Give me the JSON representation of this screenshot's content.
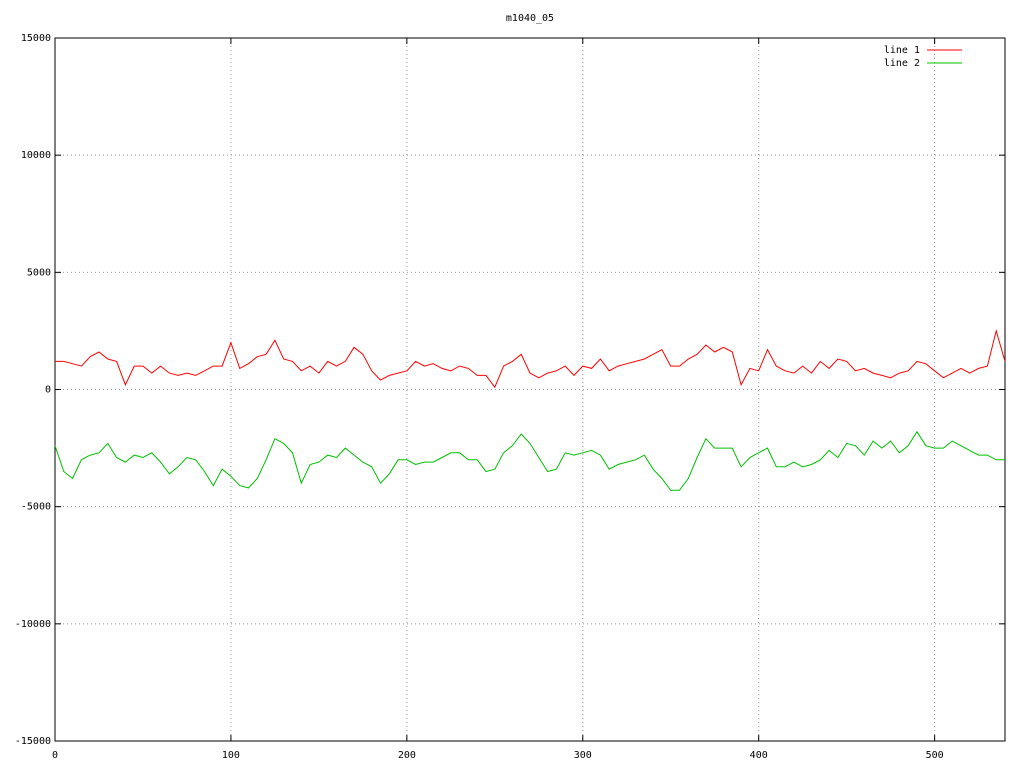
{
  "chart_data": {
    "type": "line",
    "title": "m1040_05",
    "x": [
      0,
      5,
      10,
      15,
      20,
      25,
      30,
      35,
      40,
      45,
      50,
      55,
      60,
      65,
      70,
      75,
      80,
      85,
      90,
      95,
      100,
      105,
      110,
      115,
      120,
      125,
      130,
      135,
      140,
      145,
      150,
      155,
      160,
      165,
      170,
      175,
      180,
      185,
      190,
      195,
      200,
      205,
      210,
      215,
      220,
      225,
      230,
      235,
      240,
      245,
      250,
      255,
      260,
      265,
      270,
      275,
      280,
      285,
      290,
      295,
      300,
      305,
      310,
      315,
      320,
      325,
      330,
      335,
      340,
      345,
      350,
      355,
      360,
      365,
      370,
      375,
      380,
      385,
      390,
      395,
      400,
      405,
      410,
      415,
      420,
      425,
      430,
      435,
      440,
      445,
      450,
      455,
      460,
      465,
      470,
      475,
      480,
      485,
      490,
      495,
      500,
      505,
      510,
      515,
      520,
      525,
      530,
      535,
      540
    ],
    "series": [
      {
        "name": "line 1",
        "color": "#ff0000",
        "values": [
          1200,
          1200,
          1100,
          1000,
          1400,
          1600,
          1300,
          1200,
          200,
          1000,
          1000,
          700,
          1000,
          700,
          600,
          700,
          600,
          800,
          1000,
          1000,
          2000,
          900,
          1100,
          1400,
          1500,
          2100,
          1300,
          1200,
          800,
          1000,
          700,
          1200,
          1000,
          1200,
          1800,
          1500,
          800,
          400,
          600,
          700,
          800,
          1200,
          1000,
          1100,
          900,
          800,
          1000,
          900,
          600,
          600,
          100,
          1000,
          1200,
          1500,
          700,
          500,
          700,
          800,
          1000,
          600,
          1000,
          900,
          1300,
          800,
          1000,
          1100,
          1200,
          1300,
          1500,
          1700,
          1000,
          1000,
          1300,
          1500,
          1900,
          1600,
          1800,
          1600,
          200,
          900,
          800,
          1700,
          1000,
          800,
          700,
          1000,
          700,
          1200,
          900,
          1300,
          1200,
          800,
          900,
          700,
          600,
          500,
          700,
          800,
          1200,
          1100,
          800,
          500,
          700,
          900,
          700,
          900,
          1000,
          2500,
          1200
        ]
      },
      {
        "name": "line 2",
        "color": "#00c000",
        "values": [
          -2400,
          -3500,
          -3800,
          -3000,
          -2800,
          -2700,
          -2300,
          -2900,
          -3100,
          -2800,
          -2900,
          -2700,
          -3100,
          -3600,
          -3300,
          -2900,
          -3000,
          -3500,
          -4100,
          -3400,
          -3700,
          -4100,
          -4200,
          -3800,
          -3000,
          -2100,
          -2300,
          -2700,
          -4000,
          -3200,
          -3100,
          -2800,
          -2900,
          -2500,
          -2800,
          -3100,
          -3300,
          -4000,
          -3600,
          -3000,
          -3000,
          -3200,
          -3100,
          -3100,
          -2900,
          -2700,
          -2700,
          -3000,
          -3000,
          -3500,
          -3400,
          -2700,
          -2400,
          -1900,
          -2300,
          -2900,
          -3500,
          -3400,
          -2700,
          -2800,
          -2700,
          -2600,
          -2800,
          -3400,
          -3200,
          -3100,
          -3000,
          -2800,
          -3400,
          -3800,
          -4300,
          -4300,
          -3800,
          -2900,
          -2100,
          -2500,
          -2500,
          -2500,
          -3300,
          -2900,
          -2700,
          -2500,
          -3300,
          -3300,
          -3100,
          -3300,
          -3200,
          -3000,
          -2600,
          -2900,
          -2300,
          -2400,
          -2800,
          -2200,
          -2500,
          -2200,
          -2700,
          -2400,
          -1800,
          -2400,
          -2500,
          -2500,
          -2200,
          -2400,
          -2600,
          -2800,
          -2800,
          -3000,
          -3000
        ]
      }
    ],
    "xlim": [
      0,
      540
    ],
    "xticks": [
      0,
      100,
      200,
      300,
      400,
      500
    ],
    "ylim": [
      -15000,
      15000
    ],
    "yticks": [
      -15000,
      -10000,
      -5000,
      0,
      5000,
      10000,
      15000
    ],
    "grid": true,
    "legend": "top-right"
  }
}
